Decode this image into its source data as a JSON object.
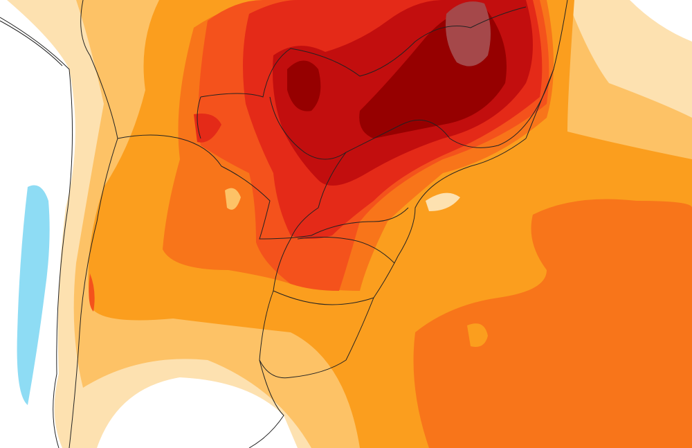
{
  "map": {
    "type": "temperature-anomaly-contour-map",
    "colors": {
      "ocean_background": "#ffffff",
      "level_1": "#fde1b0",
      "level_2": "#fdc266",
      "level_3": "#fb9e1e",
      "level_4": "#f8751a",
      "level_5": "#f4521c",
      "level_6": "#e42a18",
      "level_7": "#c20e0e",
      "level_8": "#960000",
      "level_9": "#a5484a",
      "negative": "#8edcf4",
      "borders": "#222222"
    }
  }
}
